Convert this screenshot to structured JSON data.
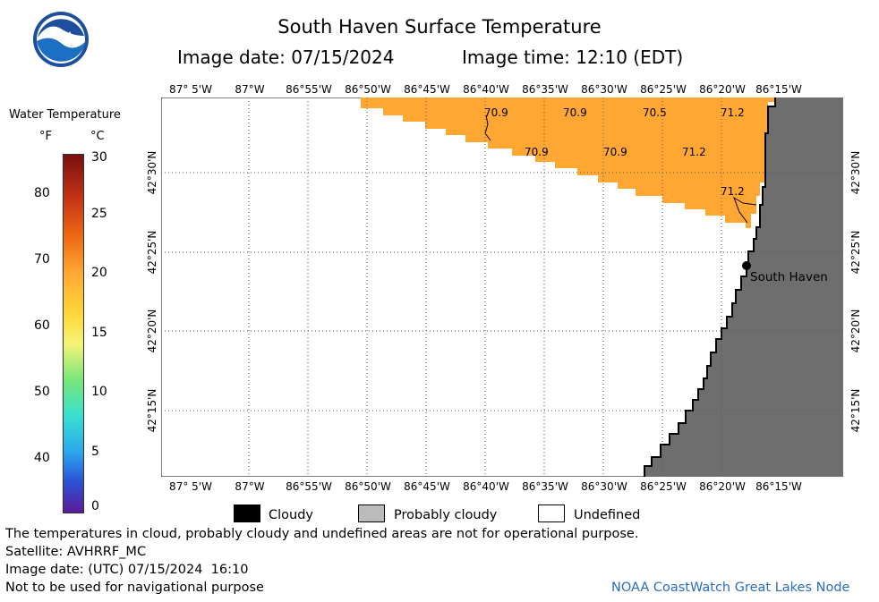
{
  "header": {
    "title": "South Haven Surface Temperature",
    "date_line": "Image date: 07/15/2024",
    "time_line": "Image time: 12:10 (EDT)"
  },
  "logo": {
    "text": "NOAA",
    "name": "noaa-logo"
  },
  "scale": {
    "title": "Water Temperature",
    "unit_f": "°F",
    "unit_c": "°C",
    "f_ticks": [
      "80",
      "70",
      "60",
      "50",
      "40"
    ],
    "c_ticks": [
      "30",
      "25",
      "20",
      "15",
      "10",
      "5",
      "0"
    ],
    "c_range": [
      0,
      30
    ]
  },
  "axes": {
    "lon_ticks": [
      "87° 5'W",
      "87°W",
      "86°55'W",
      "86°50'W",
      "86°45'W",
      "86°40'W",
      "86°35'W",
      "86°30'W",
      "86°25'W",
      "86°20'W",
      "86°15'W"
    ],
    "lat_ticks": [
      "42°30'N",
      "42°25'N",
      "42°20'N",
      "42°15'N"
    ]
  },
  "map": {
    "temperatures": [
      "70.9",
      "70.9",
      "70.5",
      "71.2",
      "70.9",
      "70.9",
      "71.2",
      "71.2"
    ],
    "city": "South Haven",
    "colors": {
      "water_warm": "#ffa733",
      "land": "#6e6e6e",
      "undefined": "#ffffff"
    }
  },
  "legend": {
    "cloudy": "Cloudy",
    "probably_cloudy": "Probably cloudy",
    "undefined": "Undefined"
  },
  "footer": {
    "note": "The temperatures in cloud, probably cloudy and undefined areas are not for operational purpose.",
    "satellite": "Satellite: AVHRRF_MC",
    "utc_date": "Image date: (UTC) 07/15/2024  16:10",
    "nav": "Not to be used for navigational purpose",
    "credit": "NOAA CoastWatch Great Lakes Node"
  }
}
